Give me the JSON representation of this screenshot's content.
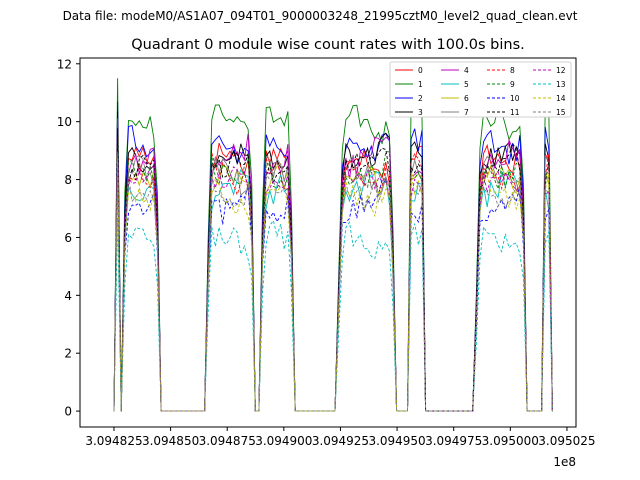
{
  "chart_data": {
    "type": "line",
    "suptitle": "Data file: modeM0/AS1A07_094T01_9000003248_21995cztM0_level2_quad_clean.evt",
    "title": "Quadrant 0 module wise count rates with 100.0s bins.",
    "xlabel": "",
    "ylabel": "",
    "x_offset_label": "1e8",
    "xlim": [
      3.09481,
      3.095029
    ],
    "ylim": [
      -0.55,
      12.2
    ],
    "xticks": [
      3.094825,
      3.09485,
      3.094875,
      3.0949,
      3.094925,
      3.09495,
      3.094975,
      3.095,
      3.095025
    ],
    "xtick_labels": [
      "3.094825",
      "3.094850",
      "3.094875",
      "3.094900",
      "3.094925",
      "3.094950",
      "3.094975",
      "3.095000",
      "3.095025"
    ],
    "yticks": [
      0,
      2,
      4,
      6,
      8,
      10,
      12
    ],
    "ytick_labels": [
      "0",
      "2",
      "4",
      "6",
      "8",
      "10",
      "12"
    ],
    "grid": false,
    "legend_position": "top-right",
    "segments": [
      [
        3.094825,
        3.094827
      ],
      [
        3.094829,
        3.094845
      ],
      [
        3.094866,
        3.094887
      ],
      [
        3.09489,
        3.094904
      ],
      [
        3.094924,
        3.094949
      ],
      [
        3.094955,
        3.094962
      ],
      [
        3.094985,
        3.095007
      ],
      [
        3.095014,
        3.095018
      ]
    ],
    "series": [
      {
        "name": "0",
        "level": 8.6,
        "color": "#ff0000",
        "dash": false
      },
      {
        "name": "1",
        "level": 10.0,
        "color": "#008000",
        "dash": false
      },
      {
        "name": "2",
        "level": 9.3,
        "color": "#0000ff",
        "dash": false
      },
      {
        "name": "3",
        "level": 9.0,
        "color": "#000000",
        "dash": false
      },
      {
        "name": "4",
        "level": 8.8,
        "color": "#bf00bf",
        "dash": false
      },
      {
        "name": "5",
        "level": 7.6,
        "color": "#00bfbf",
        "dash": false
      },
      {
        "name": "6",
        "level": 7.9,
        "color": "#bfbf00",
        "dash": false
      },
      {
        "name": "7",
        "level": 8.1,
        "color": "#808080",
        "dash": false
      },
      {
        "name": "8",
        "level": 8.2,
        "color": "#ff0000",
        "dash": true
      },
      {
        "name": "9",
        "level": 8.4,
        "color": "#008000",
        "dash": true
      },
      {
        "name": "10",
        "level": 7.2,
        "color": "#0000ff",
        "dash": true
      },
      {
        "name": "11",
        "level": 8.5,
        "color": "#000000",
        "dash": true
      },
      {
        "name": "12",
        "level": 7.8,
        "color": "#bf00bf",
        "dash": true
      },
      {
        "name": "13",
        "level": 5.8,
        "color": "#00bfbf",
        "dash": true
      },
      {
        "name": "14",
        "level": 7.5,
        "color": "#bfbf00",
        "dash": true
      },
      {
        "name": "15",
        "level": 7.7,
        "color": "#808080",
        "dash": true
      }
    ]
  }
}
